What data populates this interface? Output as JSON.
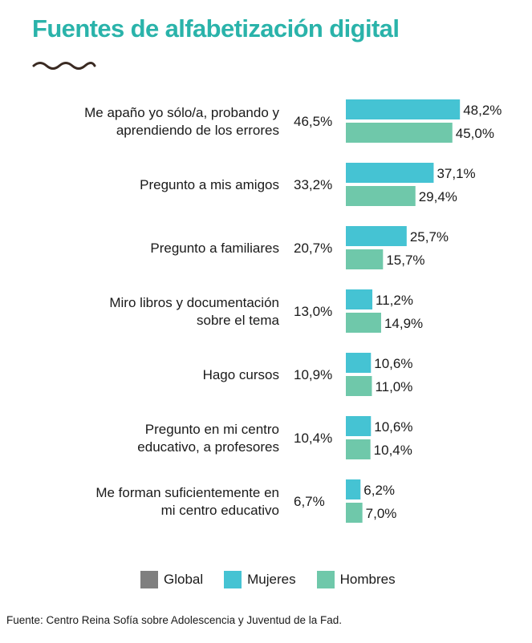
{
  "title": "Fuentes de alfabetización digital",
  "source": "Fuente: Centro Reina Sofía sobre Adolescencia y Juventud de la Fad.",
  "colors": {
    "global": "#7f7f7f",
    "mujeres": "#45c3d3",
    "hombres": "#6fc8aa",
    "title": "#2ab3aa"
  },
  "chart_data": {
    "type": "bar",
    "orientation": "horizontal",
    "categories": [
      [
        "Me apaño yo sólo/a, probando y",
        "aprendiendo de los errores"
      ],
      [
        "Pregunto a mis amigos"
      ],
      [
        "Pregunto a familiares"
      ],
      [
        "Miro libros y documentación",
        "sobre el tema"
      ],
      [
        "Hago cursos"
      ],
      [
        "Pregunto en mi centro",
        "educativo, a profesores"
      ],
      [
        "Me forman suficientemente en",
        "mi centro educativo"
      ]
    ],
    "series": [
      {
        "name": "Global",
        "values": [
          46.5,
          33.2,
          20.7,
          13.0,
          10.9,
          10.4,
          6.7
        ],
        "labels": [
          "46,5%",
          "33,2%",
          "20,7%",
          "13,0%",
          "10,9%",
          "10,4%",
          "6,7%"
        ],
        "color": "#7f7f7f"
      },
      {
        "name": "Mujeres",
        "values": [
          48.2,
          37.1,
          25.7,
          11.2,
          10.6,
          10.6,
          6.2
        ],
        "labels": [
          "48,2%",
          "37,1%",
          "25,7%",
          "11,2%",
          "10,6%",
          "10,6%",
          "6,2%"
        ],
        "color": "#45c3d3"
      },
      {
        "name": "Hombres",
        "values": [
          45.0,
          29.4,
          15.7,
          14.9,
          11.0,
          10.4,
          7.0
        ],
        "labels": [
          "45,0%",
          "29,4%",
          "15,7%",
          "14,9%",
          "11,0%",
          "10,4%",
          "7,0%"
        ],
        "color": "#6fc8aa"
      }
    ],
    "legend_position": "bottom",
    "grid": false
  }
}
